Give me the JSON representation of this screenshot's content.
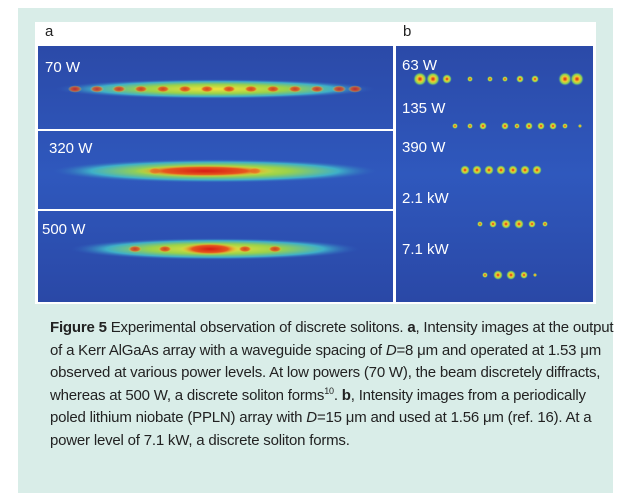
{
  "figure": {
    "panel_a": {
      "label": "a",
      "images": [
        "70 W",
        "320 W",
        "500 W"
      ]
    },
    "panel_b": {
      "label": "b",
      "images": [
        "63 W",
        "135 W",
        "390 W",
        "2.1 kW",
        "7.1 kW"
      ]
    },
    "caption": [
      "Figure 5",
      " Experimental observation of discrete solitons. ",
      "a",
      ", Intensity images at the output of a Kerr AlGaAs array with a waveguide spacing of ",
      "D",
      "=8 μm and operated at 1.53 μm observed at various power levels. At low powers (70 W), the beam discretely diffracts, whereas at 500 W, a discrete soliton forms",
      "10",
      ". ",
      "b",
      ", Intensity images from a periodically poled lithium niobate (PPLN) array with ",
      "D",
      "=15 μm and used at 1.56 μm (ref. 16). At a power level of 7.1 kW, a discrete soliton forms."
    ]
  }
}
